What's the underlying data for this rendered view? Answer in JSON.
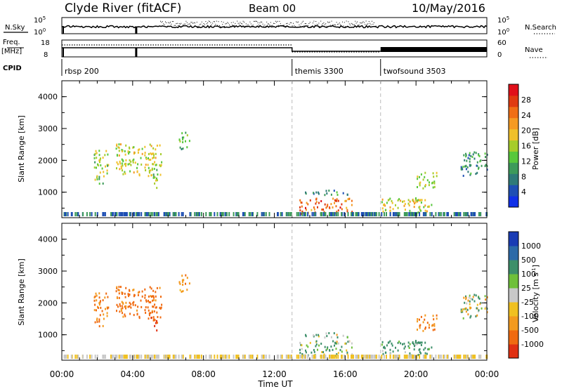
{
  "chart_data": {
    "type": "heatmap",
    "header": {
      "station": "Clyde River (fitACF)",
      "beam": "Beam 00",
      "date": "10/May/2016"
    },
    "xlabel": "Time UT",
    "x_ticks": [
      "00:00",
      "04:00",
      "08:00",
      "12:00",
      "16:00",
      "20:00",
      "00:00"
    ],
    "x_range_hours": [
      0,
      24
    ],
    "top_panels": {
      "nsky": {
        "left_label": "N.Sky",
        "left_ticks": [
          "10^5",
          "10^0"
        ],
        "right_ticks": [
          "10^5",
          "10^0"
        ],
        "right_legend": "N.Search"
      },
      "freq": {
        "left_label_1": "Freq.",
        "left_label_2": "[MHz]",
        "left_ticks": [
          "18",
          "8"
        ],
        "right_ticks": [
          "60",
          "0"
        ],
        "right_legend": "Nave"
      },
      "cpid": {
        "label": "CPID",
        "segments": [
          {
            "name": "rbsp 200",
            "start_hour": 0
          },
          {
            "name": "themis 3300",
            "start_hour": 13
          },
          {
            "name": "twofsound 3503",
            "start_hour": 18
          }
        ]
      }
    },
    "power_panel": {
      "ylabel": "Slant Range [km]",
      "y_ticks": [
        "1000",
        "2000",
        "3000",
        "4000"
      ],
      "ylim": [
        200,
        4500
      ],
      "colorbar_label": "Power [dB]",
      "colorbar_ticks": [
        "4",
        "8",
        "12",
        "16",
        "20",
        "24",
        "28"
      ],
      "colorbar_colors": [
        "#1030e8",
        "#1e4fb4",
        "#2e7a78",
        "#3d9a5a",
        "#58c83c",
        "#a6cc2a",
        "#f0c02a",
        "#f59a22",
        "#f06e14",
        "#e03a10",
        "#e0101a"
      ]
    },
    "velocity_panel": {
      "ylabel": "Slant Range [km]",
      "y_ticks": [
        "1000",
        "2000",
        "3000",
        "4000"
      ],
      "ylim": [
        200,
        4500
      ],
      "colorbar_label": "Velocity [m s^-1]",
      "colorbar_ticks": [
        "1000",
        "500",
        "100",
        "25",
        "-25",
        "-100",
        "-500",
        "-1000"
      ],
      "colorbar_colors": [
        "#1a3cb4",
        "#2c6aa8",
        "#3d8f6a",
        "#6fc03a",
        "#c8c8c8",
        "#f0c020",
        "#f39a1e",
        "#f06a10",
        "#e03012"
      ]
    },
    "echo_regions": [
      {
        "t0": 1.8,
        "t1": 2.6,
        "r0": 1200,
        "r1": 2300,
        "power": 14,
        "vel": -300
      },
      {
        "t0": 3.0,
        "t1": 5.6,
        "r0": 1500,
        "r1": 2500,
        "power": 16,
        "vel": -400
      },
      {
        "t0": 6.6,
        "t1": 7.2,
        "r0": 2300,
        "r1": 2900,
        "power": 10,
        "vel": -200
      },
      {
        "t0": 4.8,
        "t1": 5.4,
        "r0": 1100,
        "r1": 1700,
        "power": 14,
        "vel": -700
      },
      {
        "t0": 13.4,
        "t1": 16.4,
        "r0": 300,
        "r1": 800,
        "power": 24,
        "vel": 80
      },
      {
        "t0": 13.6,
        "t1": 16.2,
        "r0": 900,
        "r1": 1050,
        "power": 6,
        "vel": 20
      },
      {
        "t0": 18.0,
        "t1": 21.0,
        "r0": 300,
        "r1": 800,
        "power": 16,
        "vel": 150
      },
      {
        "t0": 20.0,
        "t1": 21.2,
        "r0": 1100,
        "r1": 1600,
        "power": 14,
        "vel": -300
      },
      {
        "t0": 22.5,
        "t1": 24.0,
        "r0": 1500,
        "r1": 2300,
        "power": 8,
        "vel": 10
      }
    ]
  }
}
